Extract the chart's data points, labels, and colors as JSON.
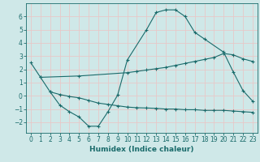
{
  "bg_color": "#cfe8e8",
  "grid_color": "#e8c8c8",
  "line_color": "#1a6b6b",
  "line_width": 0.8,
  "marker": "+",
  "marker_size": 3.5,
  "marker_edge_width": 0.8,
  "xlabel": "Humidex (Indice chaleur)",
  "xlabel_fontsize": 6.5,
  "xlim": [
    -0.5,
    23.5
  ],
  "ylim": [
    -2.8,
    7.0
  ],
  "yticks": [
    -2,
    -1,
    0,
    1,
    2,
    3,
    4,
    5,
    6
  ],
  "xticks": [
    0,
    1,
    2,
    3,
    4,
    5,
    6,
    7,
    8,
    9,
    10,
    11,
    12,
    13,
    14,
    15,
    16,
    17,
    18,
    19,
    20,
    21,
    22,
    23
  ],
  "tick_fontsize": 5.5,
  "series1_x": [
    0,
    1,
    2,
    3,
    4,
    5,
    6,
    7,
    8,
    9,
    10,
    12,
    13,
    14,
    15,
    16,
    17,
    18,
    20,
    21,
    22,
    23
  ],
  "series1_y": [
    2.5,
    1.4,
    0.3,
    -0.7,
    -1.2,
    -1.6,
    -2.3,
    -2.3,
    -1.2,
    0.05,
    2.7,
    5.0,
    6.3,
    6.5,
    6.5,
    6.0,
    4.8,
    4.3,
    3.3,
    1.8,
    0.4,
    -0.4
  ],
  "series2_x": [
    1,
    5,
    10,
    11,
    12,
    13,
    14,
    15,
    16,
    17,
    18,
    19,
    20,
    21,
    22,
    23
  ],
  "series2_y": [
    1.4,
    1.5,
    1.75,
    1.85,
    1.95,
    2.05,
    2.15,
    2.3,
    2.45,
    2.6,
    2.75,
    2.9,
    3.2,
    3.1,
    2.8,
    2.6
  ],
  "series3_x": [
    2,
    3,
    4,
    5,
    6,
    7,
    8,
    9,
    10,
    11,
    12,
    13,
    14,
    15,
    16,
    17,
    18,
    19,
    20,
    21,
    22,
    23
  ],
  "series3_y": [
    0.3,
    0.1,
    -0.05,
    -0.15,
    -0.35,
    -0.55,
    -0.65,
    -0.75,
    -0.85,
    -0.9,
    -0.92,
    -0.95,
    -1.0,
    -1.0,
    -1.05,
    -1.05,
    -1.1,
    -1.1,
    -1.1,
    -1.15,
    -1.2,
    -1.25
  ]
}
